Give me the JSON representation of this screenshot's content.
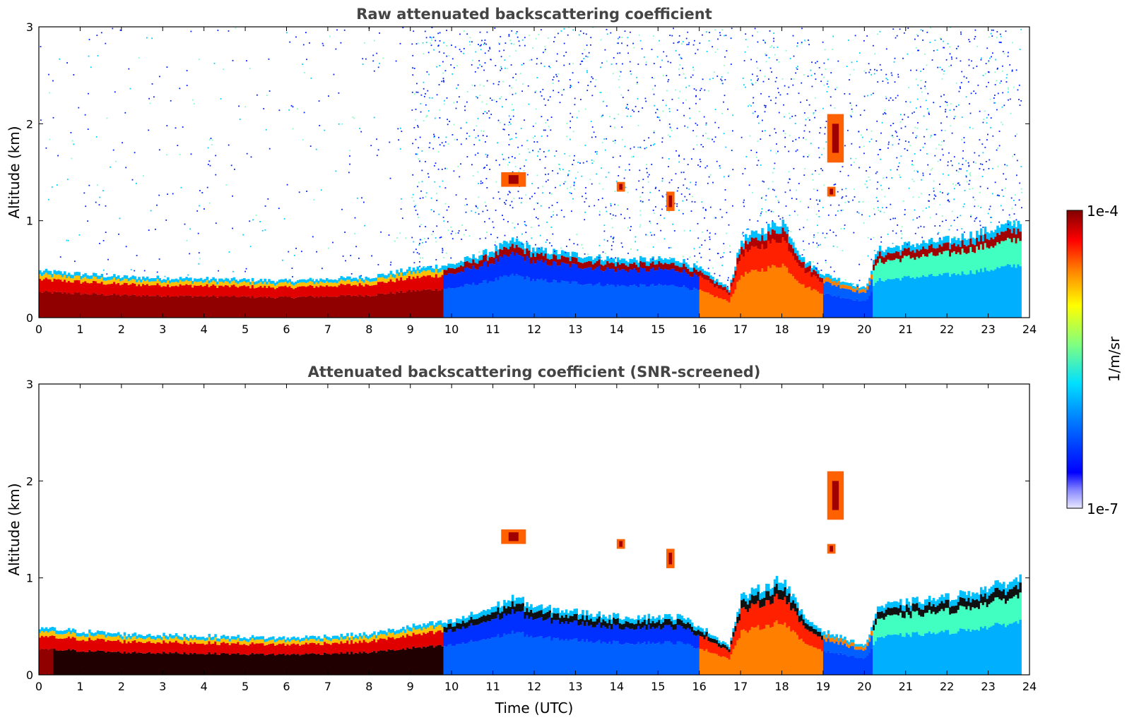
{
  "chart_data": [
    {
      "type": "heatmap",
      "title": "Raw attenuated backscattering coefficient",
      "xlabel": "",
      "ylabel": "Altitude (km)",
      "xlim": [
        0,
        24
      ],
      "ylim": [
        0,
        3
      ],
      "xticks": [
        "0",
        "1",
        "2",
        "3",
        "4",
        "5",
        "6",
        "7",
        "8",
        "9",
        "10",
        "11",
        "12",
        "13",
        "14",
        "15",
        "16",
        "17",
        "18",
        "19",
        "20",
        "21",
        "22",
        "23",
        "24"
      ],
      "yticks": [
        "0",
        "1",
        "2",
        "3"
      ],
      "x_unit": "hours UTC",
      "y_unit": "km",
      "boundary_layer_top_km": [
        [
          0,
          0.48
        ],
        [
          2,
          0.42
        ],
        [
          4,
          0.4
        ],
        [
          6,
          0.38
        ],
        [
          8,
          0.42
        ],
        [
          9,
          0.5
        ],
        [
          10,
          0.55
        ],
        [
          11,
          0.7
        ],
        [
          11.5,
          0.8
        ],
        [
          12,
          0.7
        ],
        [
          13,
          0.65
        ],
        [
          14,
          0.6
        ],
        [
          15,
          0.6
        ],
        [
          15.5,
          0.6
        ],
        [
          16,
          0.5
        ],
        [
          16.7,
          0.3
        ],
        [
          17,
          0.8
        ],
        [
          17.5,
          0.9
        ],
        [
          18,
          1.0
        ],
        [
          18.5,
          0.6
        ],
        [
          19,
          0.45
        ],
        [
          20,
          0.3
        ],
        [
          20.3,
          0.7
        ],
        [
          21,
          0.75
        ],
        [
          22,
          0.8
        ],
        [
          23,
          0.9
        ],
        [
          23.8,
          1.0
        ]
      ],
      "noise_pattern": "sparse noise below 9 h, dense noise 9-24 h above boundary layer; data gap near 16.9 h",
      "features": [
        {
          "kind": "cloud",
          "x": [
            19.1,
            19.5
          ],
          "y": [
            1.6,
            2.1
          ]
        },
        {
          "kind": "cloud",
          "x": [
            19.1,
            19.3
          ],
          "y": [
            1.25,
            1.35
          ]
        },
        {
          "kind": "cloud",
          "x": [
            15.2,
            15.4
          ],
          "y": [
            1.1,
            1.3
          ]
        },
        {
          "kind": "cloud",
          "x": [
            14.0,
            14.2
          ],
          "y": [
            1.3,
            1.4
          ]
        },
        {
          "kind": "cloud",
          "x": [
            11.2,
            11.8
          ],
          "y": [
            1.35,
            1.5
          ]
        }
      ]
    },
    {
      "type": "heatmap",
      "title": "Attenuated backscattering coefficient (SNR-screened)",
      "xlabel": "Time (UTC)",
      "ylabel": "Altitude (km)",
      "xlim": [
        0,
        24
      ],
      "ylim": [
        0,
        3
      ],
      "xticks": [
        "0",
        "1",
        "2",
        "3",
        "4",
        "5",
        "6",
        "7",
        "8",
        "9",
        "10",
        "11",
        "12",
        "13",
        "14",
        "15",
        "16",
        "17",
        "18",
        "19",
        "20",
        "21",
        "22",
        "23",
        "24"
      ],
      "yticks": [
        "0",
        "1",
        "2",
        "3"
      ],
      "x_unit": "hours UTC",
      "y_unit": "km",
      "boundary_layer_top_km": [
        [
          0,
          0.48
        ],
        [
          2,
          0.42
        ],
        [
          4,
          0.4
        ],
        [
          6,
          0.38
        ],
        [
          8,
          0.42
        ],
        [
          9,
          0.5
        ],
        [
          10,
          0.55
        ],
        [
          11,
          0.7
        ],
        [
          11.5,
          0.8
        ],
        [
          12,
          0.7
        ],
        [
          13,
          0.65
        ],
        [
          14,
          0.6
        ],
        [
          15,
          0.6
        ],
        [
          15.5,
          0.6
        ],
        [
          16,
          0.5
        ],
        [
          16.7,
          0.3
        ],
        [
          17,
          0.8
        ],
        [
          17.5,
          0.9
        ],
        [
          18,
          1.0
        ],
        [
          18.5,
          0.6
        ],
        [
          19,
          0.45
        ],
        [
          20,
          0.3
        ],
        [
          20.3,
          0.7
        ],
        [
          21,
          0.75
        ],
        [
          22,
          0.8
        ],
        [
          23,
          0.9
        ],
        [
          23.8,
          1.0
        ]
      ],
      "noise_pattern": "screened: background removed",
      "features": [
        {
          "kind": "cloud",
          "x": [
            19.1,
            19.5
          ],
          "y": [
            1.6,
            2.1
          ]
        },
        {
          "kind": "cloud",
          "x": [
            19.1,
            19.3
          ],
          "y": [
            1.25,
            1.35
          ]
        },
        {
          "kind": "cloud",
          "x": [
            15.2,
            15.4
          ],
          "y": [
            1.1,
            1.3
          ]
        },
        {
          "kind": "cloud",
          "x": [
            14.0,
            14.2
          ],
          "y": [
            1.3,
            1.4
          ]
        },
        {
          "kind": "cloud",
          "x": [
            11.2,
            11.8
          ],
          "y": [
            1.35,
            1.5
          ]
        }
      ]
    }
  ],
  "colorbar": {
    "max_label": "1e-4",
    "min_label": "1e-7",
    "unit_label": "1/m/sr",
    "scale": "log",
    "colormap": "jet",
    "range": [
      1e-07,
      0.0001
    ]
  },
  "colors": {
    "title": "#444444",
    "axis": "#000000",
    "background": "#ffffff"
  }
}
